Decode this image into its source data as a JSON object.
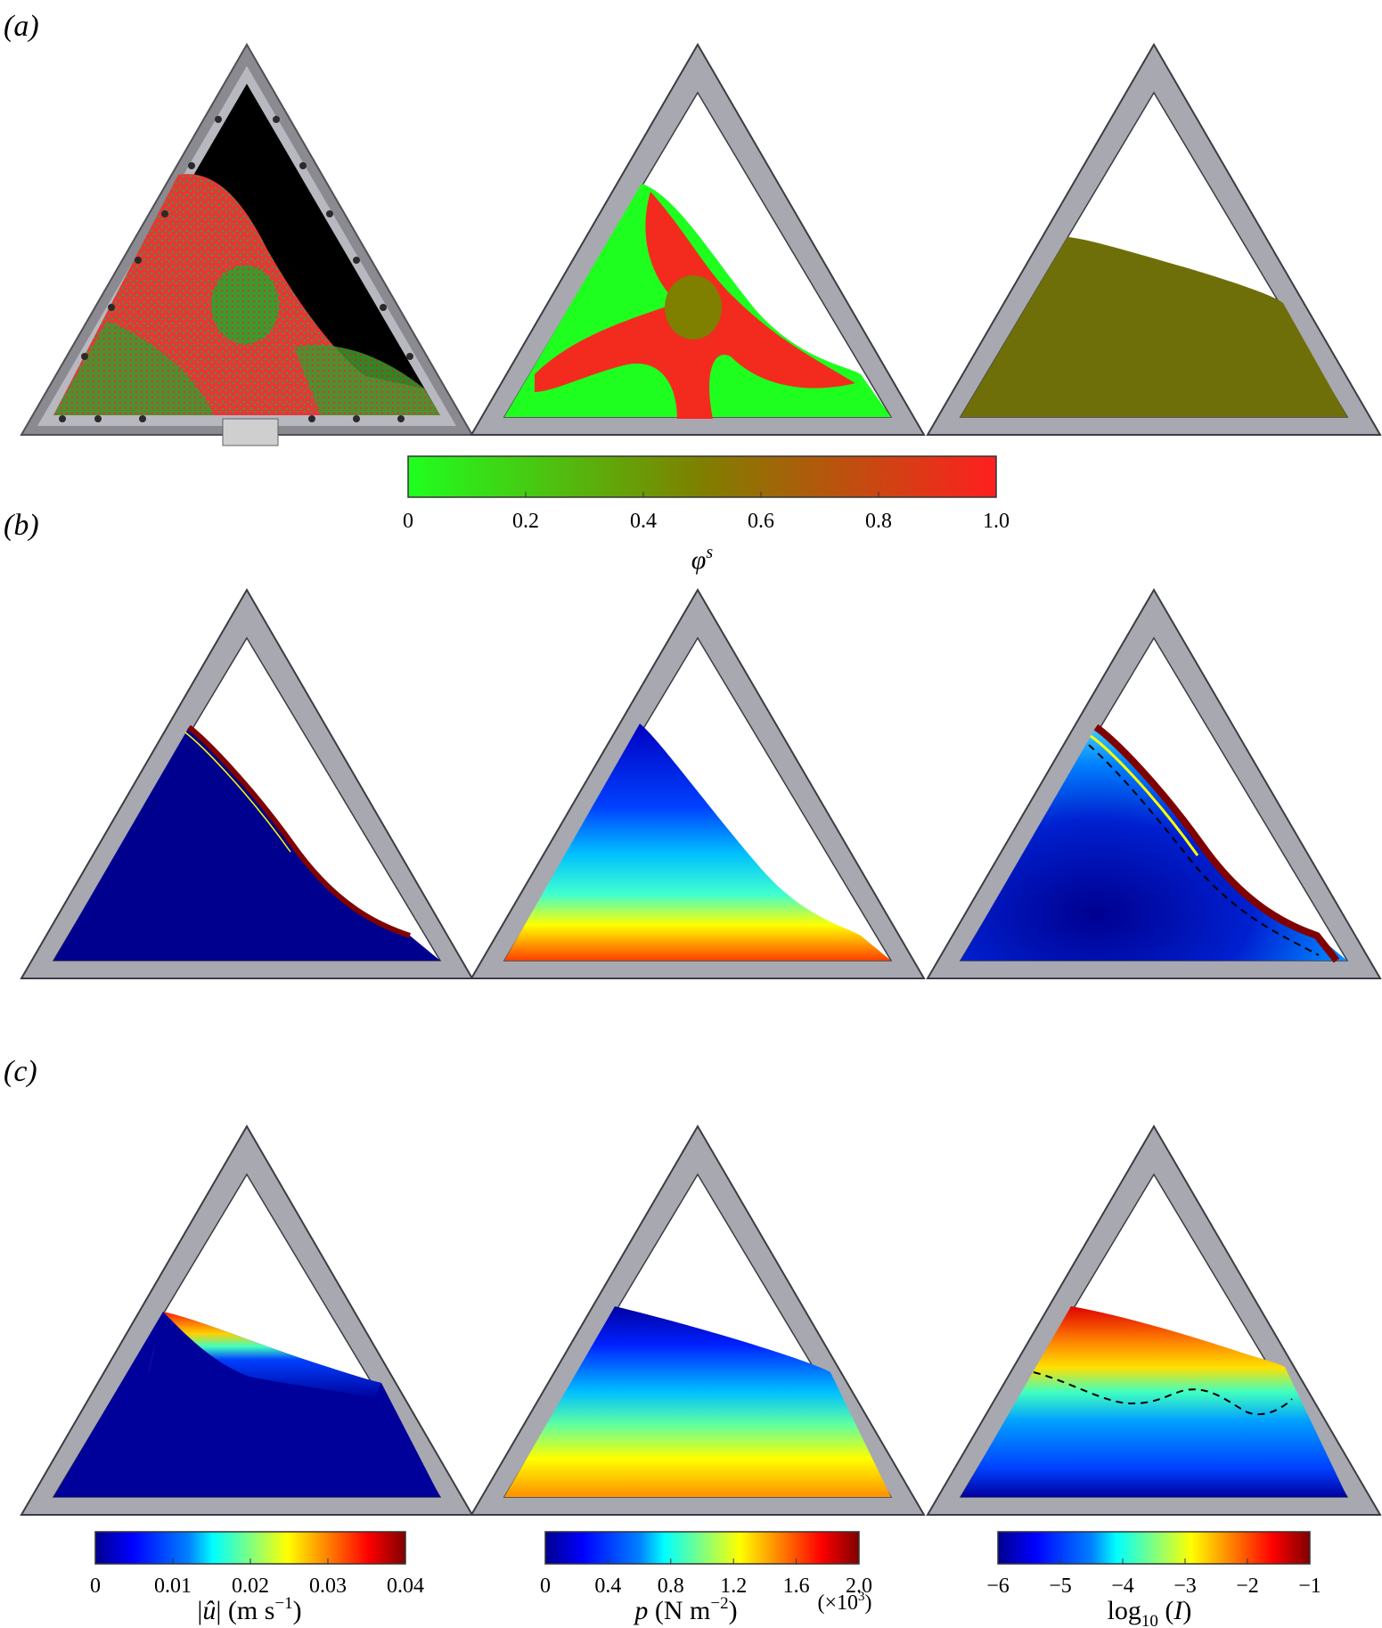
{
  "panel_labels": {
    "a": "(a)",
    "b": "(b)",
    "c": "(c)"
  },
  "colorbars": {
    "phi": {
      "ticks": [
        "0",
        "0.2",
        "0.4",
        "0.6",
        "0.8",
        "1.0"
      ],
      "symbol": "φ",
      "superscript": "s",
      "range": [
        0,
        1.0
      ],
      "colors": [
        "#1fff1f",
        "#7f7f00",
        "#ff1f1f"
      ]
    },
    "velocity": {
      "ticks": [
        "0",
        "0.01",
        "0.02",
        "0.03",
        "0.04"
      ],
      "title_pre": "|",
      "title_sym": "û",
      "title_post": "| (m s",
      "title_exp": "−1",
      "title_close": ")",
      "range": [
        0,
        0.04
      ]
    },
    "pressure": {
      "ticks": [
        "0",
        "0.4",
        "0.8",
        "1.2",
        "1.6",
        "2.0"
      ],
      "title_sym": "p",
      "title_mid": " (N m",
      "title_exp": "−2",
      "title_close": ")",
      "multiplier_pre": "(×10",
      "multiplier_exp": "3",
      "multiplier_post": ")",
      "range": [
        0,
        2.0
      ]
    },
    "inertial": {
      "ticks": [
        "−6",
        "−5",
        "−4",
        "−3",
        "−2",
        "−1"
      ],
      "title_pre": "log",
      "title_sub": "10",
      "title_mid": " (",
      "title_sym": "I",
      "title_close": ")",
      "range": [
        -6,
        -1
      ]
    }
  },
  "colors": {
    "frame": "#a8a8b0",
    "frame_edge": "#3c3c44",
    "jet": [
      "#00008f",
      "#0000ff",
      "#0080ff",
      "#00ffff",
      "#80ff80",
      "#ffff00",
      "#ff8000",
      "#ff0000",
      "#800000"
    ],
    "photo_red": "#e83030",
    "photo_green": "#40a830"
  }
}
